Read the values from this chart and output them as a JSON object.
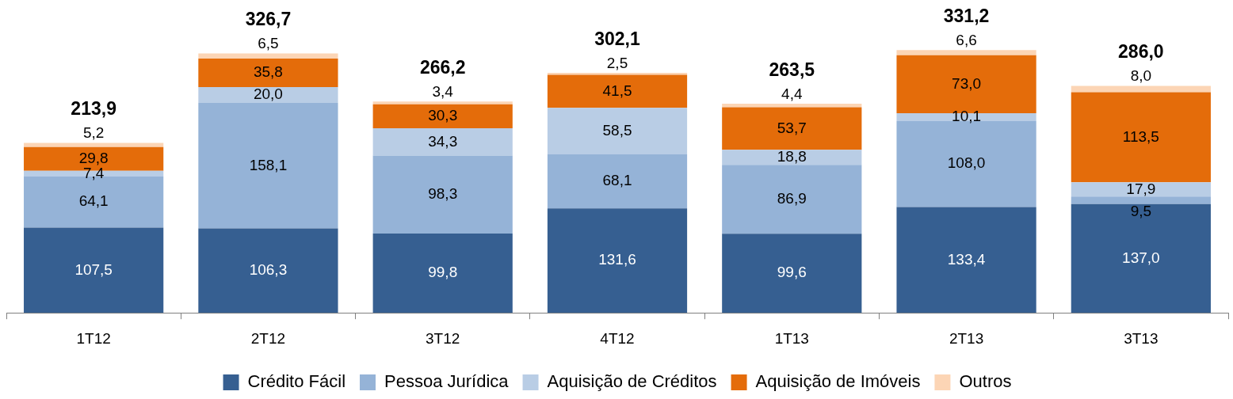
{
  "chart_data": {
    "type": "bar",
    "stacked": true,
    "legend": "bottom",
    "tick_labels": "x",
    "grid": false,
    "categories": [
      "1T12",
      "2T12",
      "3T12",
      "4T12",
      "1T13",
      "2T13",
      "3T13"
    ],
    "series": [
      {
        "name": "Crédito Fácil",
        "color": "#365f91",
        "values": [
          107.5,
          106.3,
          99.8,
          131.6,
          99.6,
          133.4,
          137.0
        ],
        "value_labels": [
          "107,5",
          "106,3",
          "99,8",
          "131,6",
          "99,6",
          "133,4",
          "137,0"
        ]
      },
      {
        "name": "Pessoa Jurídica",
        "color": "#95b3d7",
        "values": [
          64.1,
          158.1,
          98.3,
          68.1,
          86.9,
          108.0,
          9.5
        ],
        "value_labels": [
          "64,1",
          "158,1",
          "98,3",
          "68,1",
          "86,9",
          "108,0",
          "9,5"
        ]
      },
      {
        "name": "Aquisição de Créditos",
        "color": "#b9cde5",
        "values": [
          7.4,
          20.0,
          34.3,
          58.5,
          18.8,
          10.1,
          17.9
        ],
        "value_labels": [
          "7,4",
          "20,0",
          "34,3",
          "58,5",
          "18,8",
          "10,1",
          "17,9"
        ]
      },
      {
        "name": "Aquisição de Imóveis",
        "color": "#e46c0a",
        "values": [
          29.8,
          35.8,
          30.3,
          41.5,
          53.7,
          73.0,
          113.5
        ],
        "value_labels": [
          "29,8",
          "35,8",
          "30,3",
          "41,5",
          "53,7",
          "73,0",
          "113,5"
        ]
      },
      {
        "name": "Outros",
        "color": "#fcd5b5",
        "values": [
          5.2,
          6.5,
          3.4,
          2.5,
          4.4,
          6.6,
          8.0
        ],
        "value_labels": [
          "5,2",
          "6,5",
          "3,4",
          "2,5",
          "4,4",
          "6,6",
          "8,0"
        ]
      }
    ],
    "totals": [
      "213,9",
      "326,7",
      "266,2",
      "302,1",
      "263,5",
      "331,2",
      "286,0"
    ]
  }
}
